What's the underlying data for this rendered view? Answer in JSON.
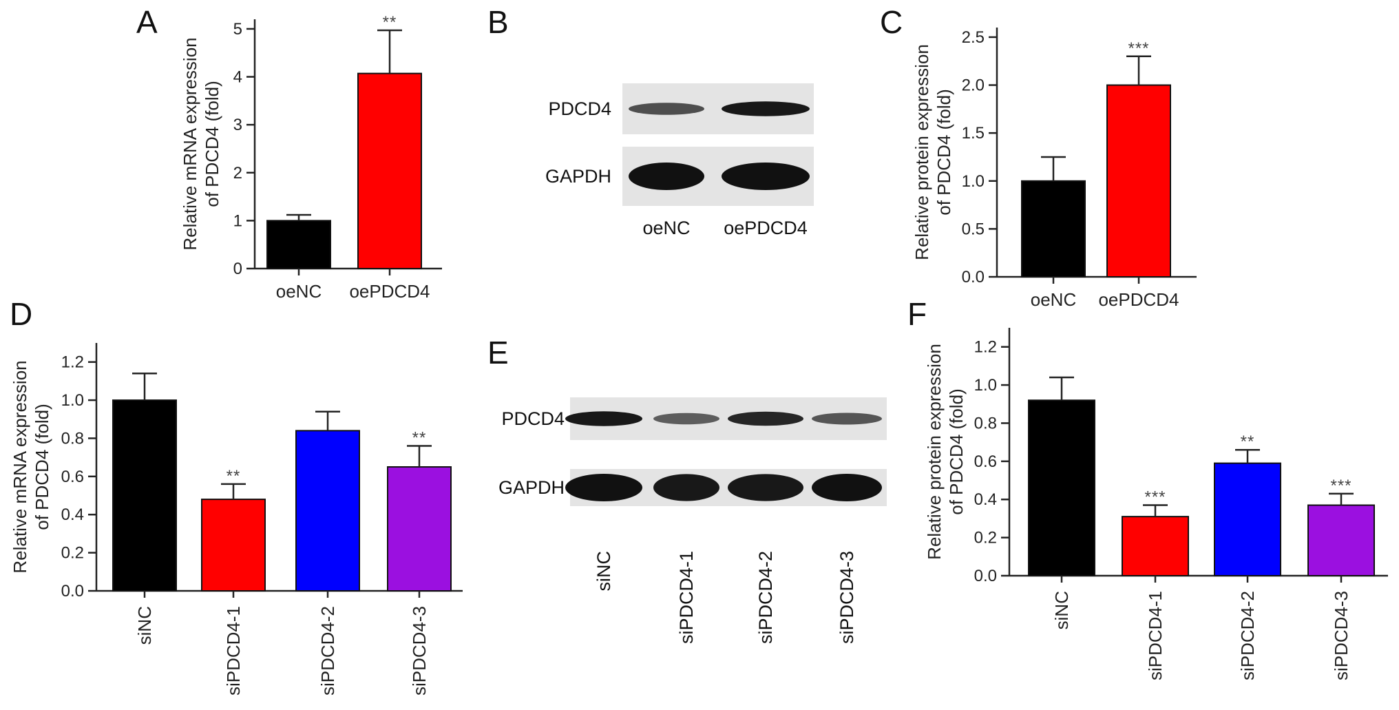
{
  "figure": {
    "panels": [
      {
        "letter": "A",
        "kind": "bar",
        "ylabel": [
          "Relative mRNA expression",
          "of PDCD4 (fold)"
        ],
        "ticks": [
          "0",
          "1",
          "2",
          "3",
          "4",
          "5"
        ],
        "xrotate": false
      },
      {
        "letter": "B",
        "kind": "blot",
        "rows": [
          "PDCD4",
          "GAPDH"
        ],
        "lanes": [
          "oeNC",
          "oePDCD4"
        ],
        "rotate": false
      },
      {
        "letter": "C",
        "kind": "bar",
        "ylabel": [
          "Relative protein expression",
          "of PDCD4 (fold)"
        ],
        "ticks": [
          "0.0",
          "0.5",
          "1.0",
          "1.5",
          "2.0",
          "2.5"
        ],
        "xrotate": false
      },
      {
        "letter": "D",
        "kind": "bar",
        "ylabel": [
          "Relative mRNA expression",
          "of PDCD4 (fold)"
        ],
        "ticks": [
          "0.0",
          "0.2",
          "0.4",
          "0.6",
          "0.8",
          "1.0",
          "1.2"
        ],
        "xrotate": true
      },
      {
        "letter": "E",
        "kind": "blot",
        "rows": [
          "PDCD4",
          "GAPDH"
        ],
        "lanes": [
          "siNC",
          "siPDCD4-1",
          "siPDCD4-2",
          "siPDCD4-3"
        ],
        "rotate": true
      },
      {
        "letter": "F",
        "kind": "bar",
        "ylabel": [
          "Relative protein expression",
          "of PDCD4 (fold)"
        ],
        "ticks": [
          "0.0",
          "0.2",
          "0.4",
          "0.6",
          "0.8",
          "1.0",
          "1.2"
        ],
        "xrotate": true
      }
    ]
  },
  "chart_data": [
    {
      "type": "bar",
      "panel": "A",
      "categories": [
        "oeNC",
        "oePDCD4"
      ],
      "values": [
        1.0,
        4.07
      ],
      "errors": [
        0.12,
        0.9
      ],
      "significance": [
        "",
        "**"
      ],
      "colors": [
        "#000000",
        "#ff0000"
      ],
      "ylabel": "Relative mRNA expression of PDCD4 (fold)",
      "ylim": [
        0,
        5.2
      ],
      "yticks": [
        0,
        1,
        2,
        3,
        4,
        5
      ],
      "grid": false
    },
    {
      "type": "bar",
      "panel": "C",
      "categories": [
        "oeNC",
        "oePDCD4"
      ],
      "values": [
        1.0,
        2.0
      ],
      "errors": [
        0.25,
        0.3
      ],
      "significance": [
        "",
        "***"
      ],
      "colors": [
        "#000000",
        "#ff0000"
      ],
      "ylabel": "Relative protein expression of PDCD4 (fold)",
      "ylim": [
        0,
        2.6
      ],
      "yticks": [
        0.0,
        0.5,
        1.0,
        1.5,
        2.0,
        2.5
      ],
      "grid": false
    },
    {
      "type": "bar",
      "panel": "D",
      "categories": [
        "siNC",
        "siPDCD4-1",
        "siPDCD4-2",
        "siPDCD4-3"
      ],
      "values": [
        1.0,
        0.48,
        0.84,
        0.65
      ],
      "errors": [
        0.14,
        0.08,
        0.1,
        0.11
      ],
      "significance": [
        "",
        "**",
        "",
        "**"
      ],
      "colors": [
        "#000000",
        "#ff0000",
        "#0000ff",
        "#9b10e0"
      ],
      "ylabel": "Relative mRNA expression of PDCD4 (fold)",
      "ylim": [
        0,
        1.3
      ],
      "yticks": [
        0.0,
        0.2,
        0.4,
        0.6,
        0.8,
        1.0,
        1.2
      ],
      "grid": false
    },
    {
      "type": "bar",
      "panel": "F",
      "categories": [
        "siNC",
        "siPDCD4-1",
        "siPDCD4-2",
        "siPDCD4-3"
      ],
      "values": [
        0.92,
        0.31,
        0.59,
        0.37
      ],
      "errors": [
        0.12,
        0.06,
        0.07,
        0.06
      ],
      "significance": [
        "",
        "***",
        "**",
        "***"
      ],
      "colors": [
        "#000000",
        "#ff0000",
        "#0000ff",
        "#9b10e0"
      ],
      "ylabel": "Relative protein expression of PDCD4 (fold)",
      "ylim": [
        0,
        1.3
      ],
      "yticks": [
        0.0,
        0.2,
        0.4,
        0.6,
        0.8,
        1.0,
        1.2
      ],
      "grid": false
    }
  ]
}
